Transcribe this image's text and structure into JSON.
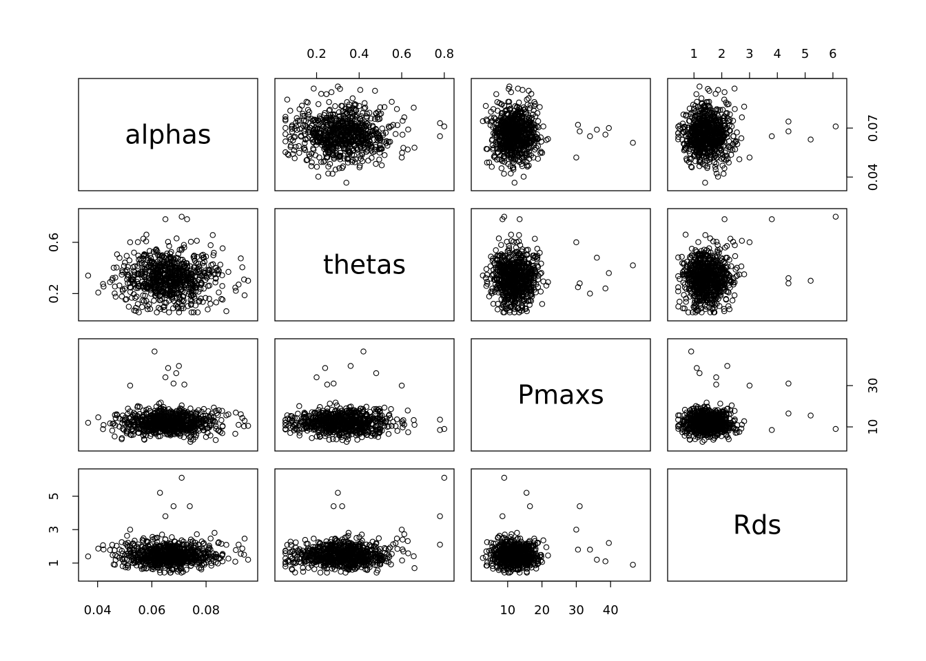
{
  "chart_data": {
    "type": "scatter",
    "variables": [
      "alphas",
      "thetas",
      "Pmaxs",
      "Rds"
    ],
    "variable_ranges": {
      "alphas": [
        0.035,
        0.097
      ],
      "thetas": [
        0.03,
        0.82
      ],
      "Pmaxs": [
        1,
        50
      ],
      "Rds": [
        0.25,
        6.3
      ]
    },
    "ticks": {
      "alphas": {
        "bottom": [
          "0.04",
          "0.06",
          "0.08"
        ],
        "right": [
          "0.04",
          "0.07"
        ]
      },
      "thetas": {
        "top": [
          "0.2",
          "0.4",
          "0.6",
          "0.8"
        ],
        "left": [
          "0.2",
          "0.6"
        ]
      },
      "Pmaxs": {
        "bottom": [
          "10",
          "20",
          "30",
          "40"
        ],
        "right": [
          "10",
          "30"
        ]
      },
      "Rds": {
        "top": [
          "1",
          "2",
          "3",
          "4",
          "5",
          "6"
        ],
        "left": [
          "1",
          "3",
          "5"
        ]
      }
    },
    "distribution": {
      "alphas": {
        "center": 0.066,
        "spread": 0.0085
      },
      "thetas": {
        "center": 0.32,
        "spread": 0.11
      },
      "Pmaxs": {
        "center": 11.5,
        "spread": 3.8
      },
      "Rds": {
        "center": 1.4,
        "spread": 0.48
      }
    },
    "outliers": [
      {
        "alphas": 0.0955,
        "thetas": 0.3,
        "Pmaxs": 10.5,
        "Rds": 1.2
      },
      {
        "alphas": 0.094,
        "thetas": 0.31,
        "Pmaxs": 10.3,
        "Rds": 1.5
      },
      {
        "alphas": 0.092,
        "thetas": 0.27,
        "Pmaxs": 11.0,
        "Rds": 2.1
      },
      {
        "alphas": 0.0365,
        "thetas": 0.34,
        "Pmaxs": 12.0,
        "Rds": 1.4
      },
      {
        "alphas": 0.061,
        "thetas": 0.42,
        "Pmaxs": 46.5,
        "Rds": 0.9
      },
      {
        "alphas": 0.07,
        "thetas": 0.36,
        "Pmaxs": 39.5,
        "Rds": 2.2
      },
      {
        "alphas": 0.066,
        "thetas": 0.24,
        "Pmaxs": 38.5,
        "Rds": 1.1
      },
      {
        "alphas": 0.071,
        "thetas": 0.8,
        "Pmaxs": 9.0,
        "Rds": 6.1
      },
      {
        "alphas": 0.063,
        "thetas": 0.3,
        "Pmaxs": 15.5,
        "Rds": 5.2
      },
      {
        "alphas": 0.074,
        "thetas": 0.32,
        "Pmaxs": 16.5,
        "Rds": 4.4
      },
      {
        "alphas": 0.068,
        "thetas": 0.28,
        "Pmaxs": 31.0,
        "Rds": 4.4
      },
      {
        "alphas": 0.072,
        "thetas": 0.25,
        "Pmaxs": 30.5,
        "Rds": 1.8
      },
      {
        "alphas": 0.065,
        "thetas": 0.2,
        "Pmaxs": 34.0,
        "Rds": 1.8
      },
      {
        "alphas": 0.073,
        "thetas": 0.78,
        "Pmaxs": 13.5,
        "Rds": 2.1
      },
      {
        "alphas": 0.058,
        "thetas": 0.66,
        "Pmaxs": 11.0,
        "Rds": 0.7
      },
      {
        "alphas": 0.065,
        "thetas": 0.78,
        "Pmaxs": 8.5,
        "Rds": 3.8
      },
      {
        "alphas": 0.069,
        "thetas": 0.48,
        "Pmaxs": 36.0,
        "Rds": 1.2
      },
      {
        "alphas": 0.052,
        "thetas": 0.6,
        "Pmaxs": 30.0,
        "Rds": 3.0
      }
    ],
    "title": "",
    "xlabel": "",
    "ylabel": "",
    "grid": false,
    "legend": "none"
  }
}
